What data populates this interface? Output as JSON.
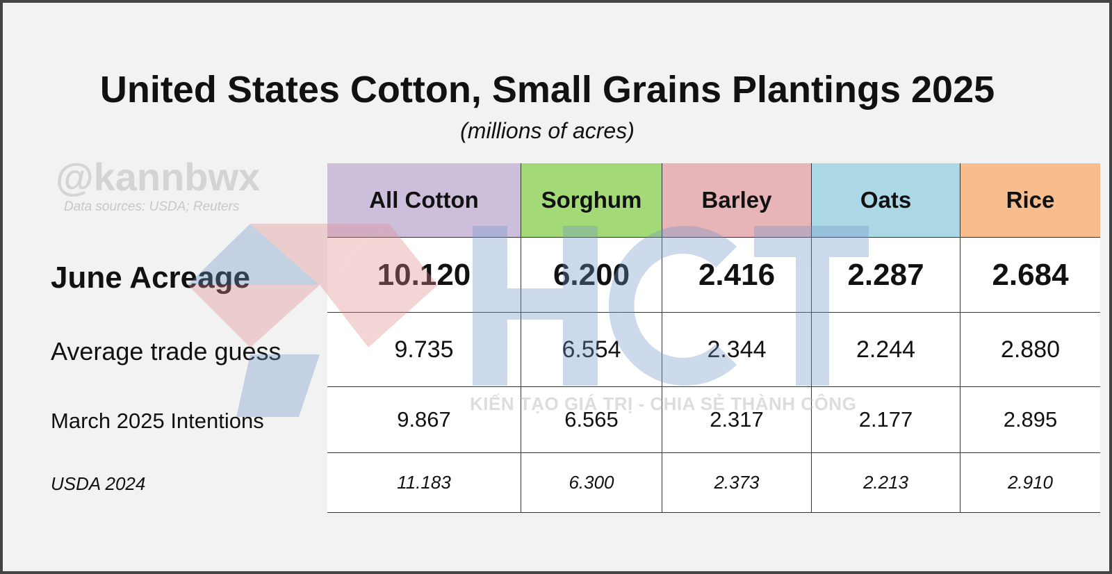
{
  "chart_data": {
    "type": "table",
    "title": "United States Cotton, Small Grains Plantings 2025",
    "subtitle": "(millions of acres)",
    "columns": [
      "All Cotton",
      "Sorghum",
      "Barley",
      "Oats",
      "Rice"
    ],
    "column_colors": [
      "#cdbfdc",
      "#a3d977",
      "#e7b4b8",
      "#acd8e6",
      "#f7bd8e"
    ],
    "rows": [
      {
        "label": "June Acreage",
        "values": [
          "10.120",
          "6.200",
          "2.416",
          "2.287",
          "2.684"
        ]
      },
      {
        "label": "Average trade guess",
        "values": [
          "9.735",
          "6.554",
          "2.344",
          "2.244",
          "2.880"
        ]
      },
      {
        "label": "March 2025 Intentions",
        "values": [
          "9.867",
          "6.565",
          "2.317",
          "2.177",
          "2.895"
        ]
      },
      {
        "label": "USDA 2024",
        "values": [
          "11.183",
          "6.300",
          "2.373",
          "2.213",
          "2.910"
        ]
      }
    ]
  },
  "branding": {
    "handle": "@kannbwx",
    "sources": "Data sources: USDA; Reuters",
    "watermark_logo": "HCT",
    "watermark_slogan": "KIẾN TẠO GIÁ TRỊ - CHIA SẺ THÀNH CÔNG"
  }
}
